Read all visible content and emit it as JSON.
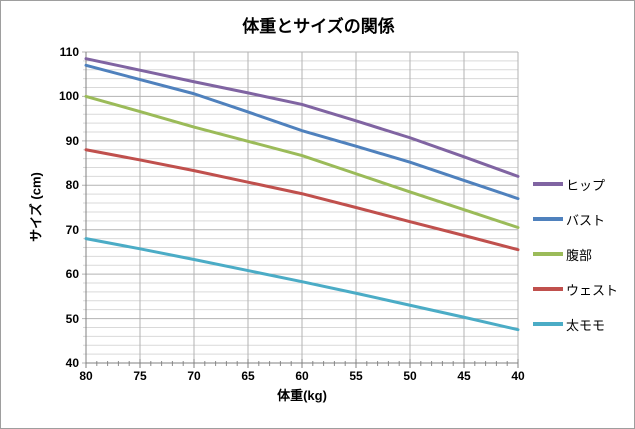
{
  "chart": {
    "title": "体重とサイズの関係",
    "x_axis": {
      "label": "体重(kg)",
      "ticks": [
        80,
        75,
        70,
        65,
        60,
        55,
        50,
        45,
        40
      ],
      "reversed": true
    },
    "y_axis": {
      "label": "サイズ (cm)",
      "ticks": [
        40,
        50,
        60,
        70,
        80,
        90,
        100,
        110
      ],
      "min": 40,
      "max": 110,
      "major_unit": 10,
      "minor_unit": 2
    },
    "legend": [
      "ヒップ",
      "バスト",
      "腹部",
      "ウェスト",
      "太モモ"
    ]
  },
  "chart_data": {
    "type": "line",
    "title": "体重とサイズの関係",
    "xlabel": "体重(kg)",
    "ylabel": "サイズ (cm)",
    "x": [
      80,
      75,
      70,
      65,
      60,
      55,
      50,
      45,
      40
    ],
    "x_reversed": true,
    "ylim": [
      40,
      110
    ],
    "y_major_unit": 10,
    "y_minor_unit": 2,
    "grid": "horizontal major+minor, vertical major",
    "legend_position": "right",
    "series": [
      {
        "name": "ヒップ",
        "color": "#8064A2",
        "values": [
          108.5,
          105.9,
          103.3,
          100.8,
          98.2,
          94.5,
          90.7,
          86.4,
          82.0
        ]
      },
      {
        "name": "バスト",
        "color": "#4F81BD",
        "values": [
          107.0,
          103.8,
          100.6,
          96.5,
          92.3,
          88.8,
          85.2,
          81.1,
          77.0
        ]
      },
      {
        "name": "腹部",
        "color": "#9BBB59",
        "values": [
          100.0,
          96.6,
          93.1,
          89.9,
          86.7,
          82.6,
          78.5,
          74.5,
          70.5
        ]
      },
      {
        "name": "ウェスト",
        "color": "#C0504D",
        "values": [
          88.0,
          85.7,
          83.3,
          80.7,
          78.1,
          75.0,
          71.8,
          68.7,
          65.5
        ]
      },
      {
        "name": "太モモ",
        "color": "#4BACC6",
        "values": [
          68.0,
          65.7,
          63.3,
          60.8,
          58.3,
          55.7,
          53.0,
          50.3,
          47.5
        ]
      }
    ]
  }
}
